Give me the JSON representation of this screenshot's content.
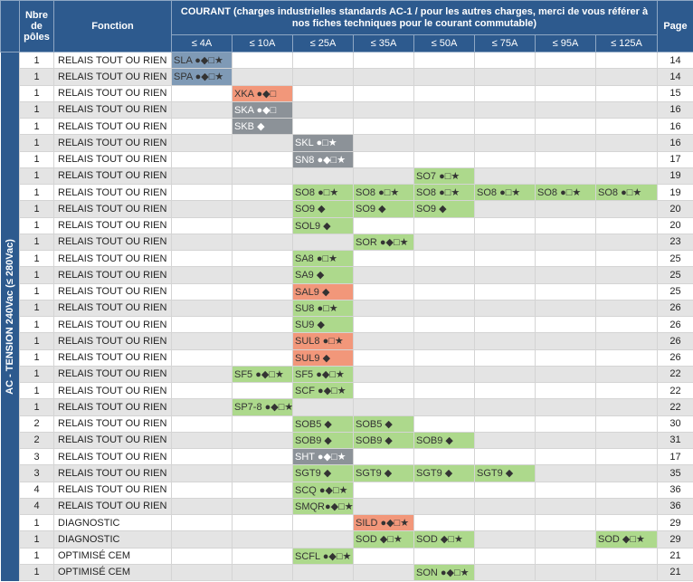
{
  "header": {
    "nb_poles": "Nbre\nde\npôles",
    "fonction": "Fonction",
    "courant": "COURANT (charges industrielles standards AC-1 / pour les autres charges, merci de vous référer à nos fiches techniques pour le courant commutable)",
    "page": "Page",
    "columns": [
      "≤ 4A",
      "≤ 10A",
      "≤ 25A",
      "≤ 35A",
      "≤ 50A",
      "≤ 75A",
      "≤ 95A",
      "≤ 125A"
    ]
  },
  "side_label": "AC - TENSION 240Vac (≤ 280Vac)",
  "colors": {
    "blue": "#7f9ab6",
    "gray": "#8c9298",
    "green": "#add98c",
    "salmon": "#f2977a",
    "header": "#2d5a8e"
  },
  "rows": [
    {
      "poles": "1",
      "fonction": "RELAIS TOUT OU RIEN",
      "page": "14",
      "cells": [
        {
          "col": 0,
          "text": "SLA ●◆□★",
          "color": "blue"
        }
      ]
    },
    {
      "poles": "1",
      "fonction": "RELAIS TOUT OU RIEN",
      "page": "14",
      "cells": [
        {
          "col": 0,
          "text": "SPA ●◆□★",
          "color": "blue"
        }
      ]
    },
    {
      "poles": "1",
      "fonction": "RELAIS TOUT OU RIEN",
      "page": "15",
      "cells": [
        {
          "col": 1,
          "text": "XKA ●◆□",
          "color": "salmon"
        }
      ]
    },
    {
      "poles": "1",
      "fonction": "RELAIS TOUT OU RIEN",
      "page": "16",
      "cells": [
        {
          "col": 1,
          "text": "SKA ●◆□",
          "color": "gray"
        }
      ]
    },
    {
      "poles": "1",
      "fonction": "RELAIS TOUT OU RIEN",
      "page": "16",
      "cells": [
        {
          "col": 1,
          "text": "SKB ◆",
          "color": "gray"
        }
      ]
    },
    {
      "poles": "1",
      "fonction": "RELAIS TOUT OU RIEN",
      "page": "16",
      "cells": [
        {
          "col": 2,
          "text": "SKL ●□★",
          "color": "gray"
        }
      ]
    },
    {
      "poles": "1",
      "fonction": "RELAIS TOUT OU RIEN",
      "page": "17",
      "cells": [
        {
          "col": 2,
          "text": "SN8 ●◆□★",
          "color": "gray"
        }
      ]
    },
    {
      "poles": "1",
      "fonction": "RELAIS TOUT OU RIEN",
      "page": "19",
      "cells": [
        {
          "col": 4,
          "text": "SO7 ●□★",
          "color": "green"
        }
      ]
    },
    {
      "poles": "1",
      "fonction": "RELAIS TOUT OU RIEN",
      "page": "19",
      "cells": [
        {
          "col": 2,
          "text": "SO8 ●□★",
          "color": "green"
        },
        {
          "col": 3,
          "text": "SO8 ●□★",
          "color": "green"
        },
        {
          "col": 4,
          "text": "SO8 ●□★",
          "color": "green"
        },
        {
          "col": 5,
          "text": "SO8 ●□★",
          "color": "green"
        },
        {
          "col": 6,
          "text": "SO8 ●□★",
          "color": "green"
        },
        {
          "col": 7,
          "text": "SO8 ●□★",
          "color": "green"
        }
      ]
    },
    {
      "poles": "1",
      "fonction": "RELAIS TOUT OU RIEN",
      "page": "20",
      "cells": [
        {
          "col": 2,
          "text": "SO9 ◆",
          "color": "green"
        },
        {
          "col": 3,
          "text": "SO9 ◆",
          "color": "green"
        },
        {
          "col": 4,
          "text": "SO9 ◆",
          "color": "green"
        }
      ]
    },
    {
      "poles": "1",
      "fonction": "RELAIS TOUT OU RIEN",
      "page": "20",
      "cells": [
        {
          "col": 2,
          "text": "SOL9 ◆",
          "color": "green"
        }
      ]
    },
    {
      "poles": "1",
      "fonction": "RELAIS TOUT OU RIEN",
      "page": "23",
      "cells": [
        {
          "col": 3,
          "text": "SOR ●◆□★",
          "color": "green"
        }
      ]
    },
    {
      "poles": "1",
      "fonction": "RELAIS TOUT OU RIEN",
      "page": "25",
      "cells": [
        {
          "col": 2,
          "text": "SA8 ●□★",
          "color": "green"
        }
      ]
    },
    {
      "poles": "1",
      "fonction": "RELAIS TOUT OU RIEN",
      "page": "25",
      "cells": [
        {
          "col": 2,
          "text": "SA9 ◆",
          "color": "green"
        }
      ]
    },
    {
      "poles": "1",
      "fonction": "RELAIS TOUT OU RIEN",
      "page": "25",
      "cells": [
        {
          "col": 2,
          "text": "SAL9 ◆",
          "color": "salmon"
        }
      ]
    },
    {
      "poles": "1",
      "fonction": "RELAIS TOUT OU RIEN",
      "page": "26",
      "cells": [
        {
          "col": 2,
          "text": "SU8 ●□★",
          "color": "green"
        }
      ]
    },
    {
      "poles": "1",
      "fonction": "RELAIS TOUT OU RIEN",
      "page": "26",
      "cells": [
        {
          "col": 2,
          "text": "SU9 ◆",
          "color": "green"
        }
      ]
    },
    {
      "poles": "1",
      "fonction": "RELAIS TOUT OU RIEN",
      "page": "26",
      "cells": [
        {
          "col": 2,
          "text": "SUL8 ●□★",
          "color": "salmon"
        }
      ]
    },
    {
      "poles": "1",
      "fonction": "RELAIS TOUT OU RIEN",
      "page": "26",
      "cells": [
        {
          "col": 2,
          "text": "SUL9 ◆",
          "color": "salmon"
        }
      ]
    },
    {
      "poles": "1",
      "fonction": "RELAIS TOUT OU RIEN",
      "page": "22",
      "cells": [
        {
          "col": 1,
          "text": "SF5 ●◆□★",
          "color": "green"
        },
        {
          "col": 2,
          "text": "SF5 ●◆□★",
          "color": "green"
        }
      ]
    },
    {
      "poles": "1",
      "fonction": "RELAIS TOUT OU RIEN",
      "page": "22",
      "cells": [
        {
          "col": 2,
          "text": "SCF ●◆□★",
          "color": "green"
        }
      ]
    },
    {
      "poles": "1",
      "fonction": "RELAIS TOUT OU RIEN",
      "page": "22",
      "cells": [
        {
          "col": 1,
          "text": "SP7-8 ●◆□★",
          "color": "green"
        }
      ]
    },
    {
      "poles": "2",
      "fonction": "RELAIS TOUT OU RIEN",
      "page": "30",
      "cells": [
        {
          "col": 2,
          "text": "SOB5 ◆",
          "color": "green"
        },
        {
          "col": 3,
          "text": "SOB5 ◆",
          "color": "green"
        }
      ]
    },
    {
      "poles": "2",
      "fonction": "RELAIS TOUT OU RIEN",
      "page": "31",
      "cells": [
        {
          "col": 2,
          "text": "SOB9 ◆",
          "color": "green"
        },
        {
          "col": 3,
          "text": "SOB9 ◆",
          "color": "green"
        },
        {
          "col": 4,
          "text": "SOB9 ◆",
          "color": "green"
        }
      ]
    },
    {
      "poles": "3",
      "fonction": "RELAIS TOUT OU RIEN",
      "page": "17",
      "cells": [
        {
          "col": 2,
          "text": "SHT ●◆□★",
          "color": "gray"
        }
      ]
    },
    {
      "poles": "3",
      "fonction": "RELAIS TOUT OU RIEN",
      "page": "35",
      "cells": [
        {
          "col": 2,
          "text": "SGT9 ◆",
          "color": "green"
        },
        {
          "col": 3,
          "text": "SGT9 ◆",
          "color": "green"
        },
        {
          "col": 4,
          "text": "SGT9 ◆",
          "color": "green"
        },
        {
          "col": 5,
          "text": "SGT9 ◆",
          "color": "green"
        }
      ]
    },
    {
      "poles": "4",
      "fonction": "RELAIS TOUT OU RIEN",
      "page": "36",
      "cells": [
        {
          "col": 2,
          "text": "SCQ ●◆□★",
          "color": "green"
        }
      ]
    },
    {
      "poles": "4",
      "fonction": "RELAIS TOUT OU RIEN",
      "page": "36",
      "cells": [
        {
          "col": 2,
          "text": "SMQR●◆□★",
          "color": "green"
        }
      ]
    },
    {
      "poles": "1",
      "fonction": "DIAGNOSTIC",
      "page": "29",
      "cells": [
        {
          "col": 3,
          "text": "SILD ●◆□★",
          "color": "salmon"
        }
      ]
    },
    {
      "poles": "1",
      "fonction": "DIAGNOSTIC",
      "page": "29",
      "cells": [
        {
          "col": 3,
          "text": "SOD ◆□★",
          "color": "green"
        },
        {
          "col": 4,
          "text": "SOD ◆□★",
          "color": "green"
        },
        {
          "col": 7,
          "text": "SOD ◆□★",
          "color": "green"
        }
      ]
    },
    {
      "poles": "1",
      "fonction": "OPTIMISÉ CEM",
      "page": "21",
      "cells": [
        {
          "col": 2,
          "text": "SCFL ●◆□★",
          "color": "green"
        }
      ]
    },
    {
      "poles": "1",
      "fonction": "OPTIMISÉ CEM",
      "page": "21",
      "cells": [
        {
          "col": 4,
          "text": "SON ●◆□★",
          "color": "green"
        }
      ]
    }
  ]
}
